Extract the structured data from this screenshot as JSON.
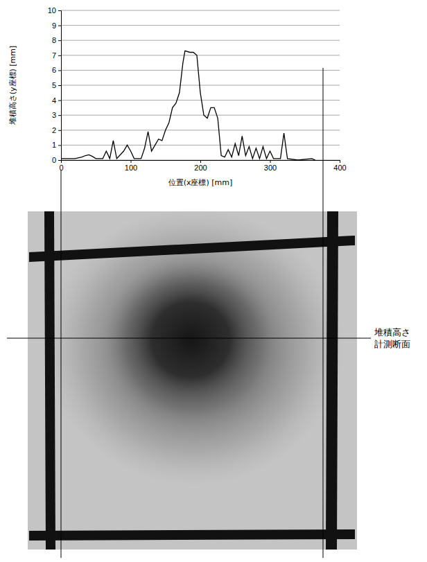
{
  "chart_data": {
    "type": "line",
    "x_label": "位置(x座標) [mm]",
    "y_label": "堆積高さ(y座標) [mm]",
    "x": [
      0,
      10,
      20,
      30,
      35,
      40,
      45,
      50,
      60,
      65,
      70,
      75,
      80,
      90,
      95,
      100,
      105,
      115,
      120,
      125,
      130,
      135,
      140,
      145,
      150,
      155,
      160,
      165,
      170,
      175,
      178,
      185,
      190,
      195,
      200,
      205,
      210,
      215,
      220,
      225,
      230,
      235,
      240,
      245,
      250,
      255,
      260,
      265,
      270,
      275,
      280,
      285,
      290,
      295,
      300,
      305,
      315,
      320,
      325,
      340,
      360,
      365
    ],
    "values": [
      0.1,
      0.1,
      0.1,
      0.2,
      0.3,
      0.35,
      0.25,
      0.1,
      0.1,
      0.6,
      0.1,
      1.3,
      0.1,
      0.6,
      1.0,
      0.6,
      0.1,
      0.1,
      0.8,
      1.9,
      0.6,
      1.0,
      1.4,
      1.3,
      2.0,
      2.5,
      3.5,
      3.8,
      4.5,
      6.5,
      7.3,
      7.2,
      7.2,
      7.0,
      4.5,
      3.0,
      2.8,
      3.5,
      3.5,
      2.8,
      0.3,
      0.2,
      0.7,
      0.2,
      1.1,
      0.3,
      1.6,
      0.3,
      0.9,
      0.1,
      0.8,
      0.1,
      0.9,
      0.1,
      0.6,
      0.1,
      0.1,
      1.8,
      0.1,
      0.0,
      0.1,
      0.0
    ],
    "color": "#000000",
    "xlim": [
      0,
      400
    ],
    "xticks": [
      0,
      100,
      200,
      300,
      400
    ],
    "ylim": [
      0,
      10
    ],
    "yticks": [
      0,
      1,
      2,
      3,
      4,
      5,
      6,
      7,
      8,
      9,
      10
    ],
    "grid": true
  },
  "photo": {
    "annotation": "堆積高さ計測断面"
  }
}
